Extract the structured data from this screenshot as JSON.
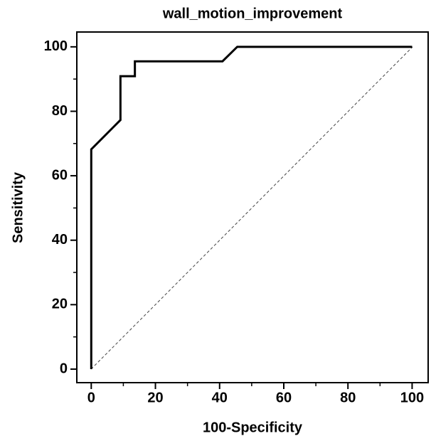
{
  "chart_data": {
    "type": "line",
    "title": "wall_motion_improvement",
    "x_label": "100-Specificity",
    "y_label": "Sensitivity",
    "x": [
      0,
      0,
      4.5,
      6.8,
      9.1,
      9.1,
      13.6,
      13.6,
      40.9,
      45.5,
      100
    ],
    "series": [
      {
        "name": "wall_motion_improvement",
        "color": "#000000",
        "values": [
          0,
          68.2,
          72.7,
          75,
          77.3,
          90.9,
          90.9,
          95.5,
          95.5,
          100,
          100
        ]
      }
    ],
    "xlim": [
      -4.5,
      105
    ],
    "ylim": [
      -4.2,
      104.6
    ],
    "xticks": [
      0,
      20,
      40,
      60,
      80,
      100
    ],
    "yticks": [
      0,
      20,
      40,
      60,
      80,
      100
    ],
    "xminorticks": [
      10,
      30,
      50,
      70,
      90
    ],
    "yminorticks": [
      10,
      30,
      50,
      70,
      90
    ]
  }
}
